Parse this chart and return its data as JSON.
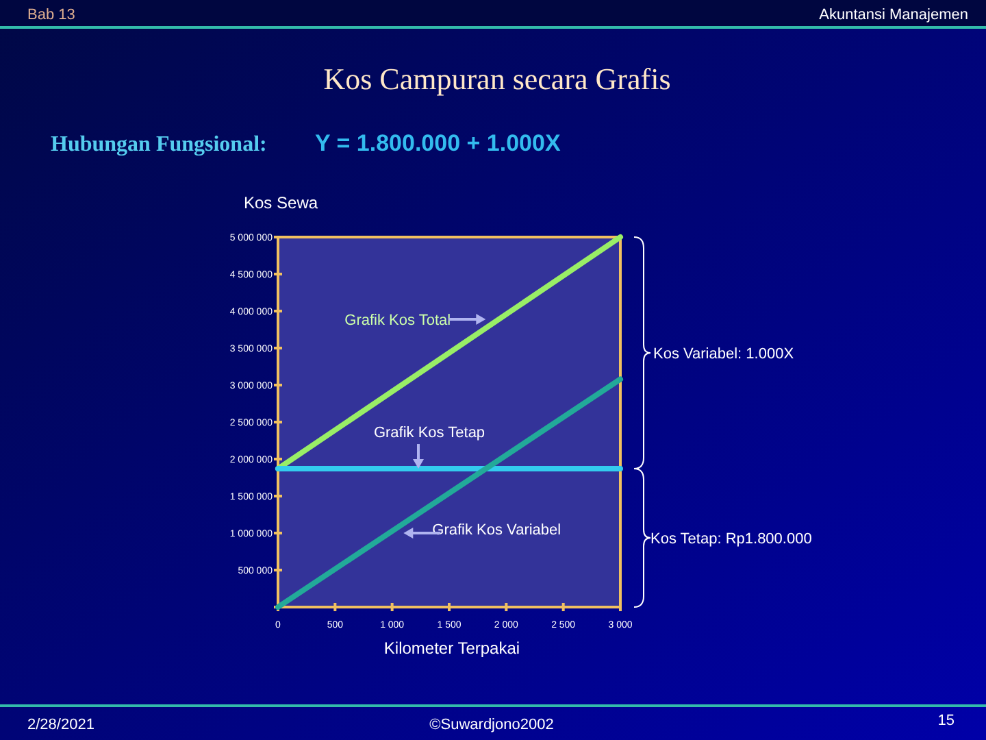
{
  "chart_data": {
    "type": "line",
    "title": "Kos Campuran secara Grafis",
    "subtitle": "Hubungan Fungsional:",
    "xlabel": "Kilometer Terpakai",
    "ylabel": "Kos Sewa",
    "xlim": [
      0,
      3000
    ],
    "xticks": [
      0,
      500,
      {
        "value": 1000,
        "label": "1 000"
      },
      {
        "value": 1500,
        "label": "1 500"
      },
      {
        "value": 2000,
        "label": "2 000"
      },
      {
        "value": 2500,
        "label": "2 500"
      },
      {
        "value": 3000,
        "label": "3 000"
      }
    ],
    "ylim": [
      0,
      5000000
    ],
    "yticks": [
      {
        "value": 0,
        "label": null
      },
      {
        "value": 500000,
        "label": "500 000"
      },
      {
        "value": 1000000,
        "label": "1 000 000"
      },
      {
        "value": 1500000,
        "label": "1 500 000"
      },
      {
        "value": 2000000,
        "label": "2 000 000"
      },
      {
        "value": 2500000,
        "label": "2 500 000"
      },
      {
        "value": 3000000,
        "label": "3 000 000"
      },
      {
        "value": 3500000,
        "label": "3 500 000"
      },
      {
        "value": 4000000,
        "label": "4 000 000"
      },
      {
        "value": 4500000,
        "label": "4 500 000"
      },
      {
        "value": 5000000,
        "label": "5 000 000"
      }
    ],
    "x": [
      0,
      3000
    ],
    "line_style": "solid",
    "series": [
      {
        "color": "#99ee66",
        "values": [
          1870000,
          5000000
        ]
      },
      {
        "color": "#33ccee",
        "values": [
          1870000,
          1870000
        ]
      },
      {
        "color": "#22aa99",
        "values": [
          0,
          3080000
        ]
      }
    ],
    "annotations": [
      "Y = 1.800.000 + 1.000X",
      "Bab 13",
      "Akuntansi Manajemen",
      {
        "text": "Grafik Kos Total",
        "x": 1820,
        "y": 3890000
      },
      {
        "text": "Grafik Kos Tetap",
        "x": 1230,
        "y": 1870000
      },
      {
        "text": "Grafik Kos Variabel",
        "x": 1100,
        "y": 1000000
      },
      "Kos Variabel: 1.000X",
      "Kos Tetap: Rp1.800.000",
      "2/28/2021",
      "©Suwardjono2002",
      "15"
    ]
  }
}
